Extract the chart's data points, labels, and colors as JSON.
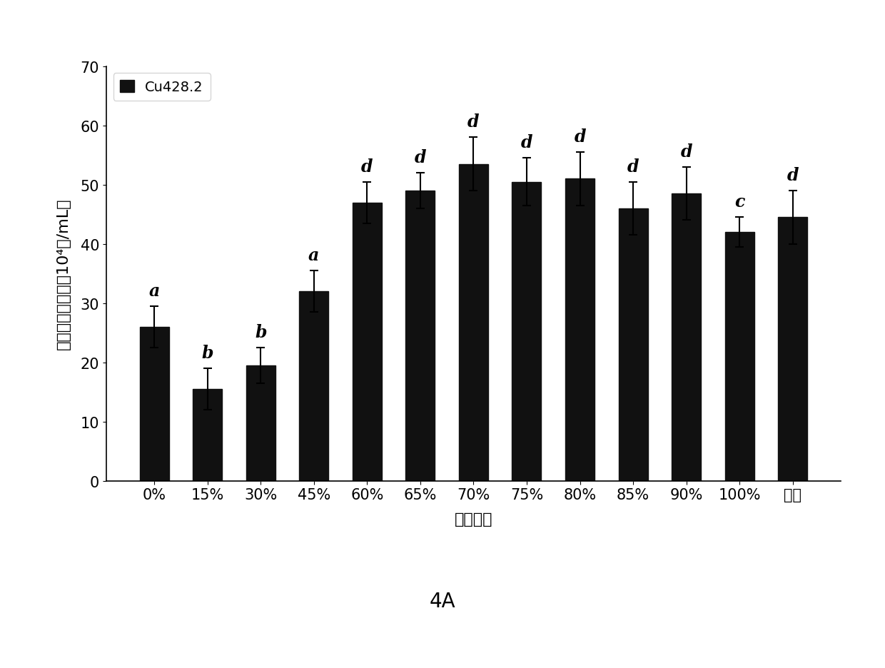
{
  "categories": [
    "0%",
    "15%",
    "30%",
    "45%",
    "60%",
    "65%",
    "70%",
    "75%",
    "80%",
    "85%",
    "90%",
    "100%",
    "典液"
  ],
  "values": [
    26.0,
    15.5,
    19.5,
    32.0,
    47.0,
    49.0,
    53.5,
    50.5,
    51.0,
    46.0,
    48.5,
    42.0,
    44.5
  ],
  "errors": [
    3.5,
    3.5,
    3.0,
    3.5,
    3.5,
    3.0,
    4.5,
    4.0,
    4.5,
    4.5,
    4.5,
    2.5,
    4.5
  ],
  "significance_labels": [
    "a",
    "b",
    "b",
    "a",
    "d",
    "d",
    "d",
    "d",
    "d",
    "d",
    "d",
    "c",
    "d"
  ],
  "bar_color": "#111111",
  "ylabel": "嗅热四膟虫密度（10⁴个/mL）",
  "xlabel": "乙醇浓度",
  "ylim": [
    0,
    70
  ],
  "yticks": [
    0,
    10,
    20,
    30,
    40,
    50,
    60,
    70
  ],
  "legend_label": "Cu428.2",
  "caption": "4A",
  "label_fontsize": 16,
  "tick_fontsize": 15,
  "sig_fontsize": 17,
  "legend_fontsize": 14,
  "caption_fontsize": 20,
  "bar_width": 0.55
}
